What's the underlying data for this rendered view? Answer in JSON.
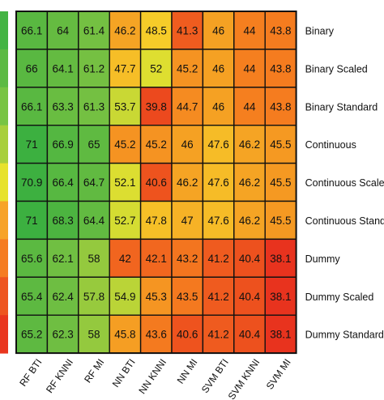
{
  "chart_data": {
    "type": "heatmap",
    "columns": [
      "RF BTI",
      "RF KNNI",
      "RF MI",
      "NN BTI",
      "NN KNNI",
      "NN MI",
      "SVM BTI",
      "SVM KNNI",
      "SVM MI"
    ],
    "rows": [
      "Binary",
      "Binary Scaled",
      "Binary Standard",
      "Continuous",
      "Continuous Scale",
      "Continuous Stand",
      "Dummy",
      "Dummy Scaled",
      "Dummy Standard"
    ],
    "values": [
      [
        66.1,
        64,
        61.4,
        46.2,
        48.5,
        41.3,
        46,
        44,
        43.8
      ],
      [
        66,
        64.1,
        61.2,
        47.7,
        52,
        45.2,
        46,
        44,
        43.8
      ],
      [
        66.1,
        63.3,
        61.3,
        53.7,
        39.8,
        44.7,
        46,
        44,
        43.8
      ],
      [
        71,
        66.9,
        65,
        45.2,
        45.2,
        46,
        47.6,
        46.2,
        45.5
      ],
      [
        70.9,
        66.4,
        64.7,
        52.1,
        40.6,
        46.2,
        47.6,
        46.2,
        45.5
      ],
      [
        71,
        68.3,
        64.4,
        52.7,
        47.8,
        47,
        47.6,
        46.2,
        45.5
      ],
      [
        65.6,
        62.1,
        58,
        42,
        42.1,
        43.2,
        41.2,
        40.4,
        38.1
      ],
      [
        65.4,
        62.4,
        57.8,
        54.9,
        45.3,
        43.5,
        41.2,
        40.4,
        38.1
      ],
      [
        65.2,
        62.3,
        58,
        45.8,
        43.6,
        40.6,
        41.2,
        40.4,
        38.1
      ]
    ],
    "value_labels": [
      [
        "66.1",
        "64",
        "61.4",
        "46.2",
        "48.5",
        "41.3",
        "46",
        "44",
        "43.8"
      ],
      [
        "66",
        "64.1",
        "61.2",
        "47.7",
        "52",
        "45.2",
        "46",
        "44",
        "43.8"
      ],
      [
        "66.1",
        "63.3",
        "61.3",
        "53.7",
        "39.8",
        "44.7",
        "46",
        "44",
        "43.8"
      ],
      [
        "71",
        "66.9",
        "65",
        "45.2",
        "45.2",
        "46",
        "47.6",
        "46.2",
        "45.5"
      ],
      [
        "70.9",
        "66.4",
        "64.7",
        "52.1",
        "40.6",
        "46.2",
        "47.6",
        "46.2",
        "45.5"
      ],
      [
        "71",
        "68.3",
        "64.4",
        "52.7",
        "47.8",
        "47",
        "47.6",
        "46.2",
        "45.5"
      ],
      [
        "65.6",
        "62.1",
        "58",
        "42",
        "42.1",
        "43.2",
        "41.2",
        "40.4",
        "38.1"
      ],
      [
        "65.4",
        "62.4",
        "57.8",
        "54.9",
        "45.3",
        "43.5",
        "41.2",
        "40.4",
        "38.1"
      ],
      [
        "65.2",
        "62.3",
        "58",
        "45.8",
        "43.6",
        "40.6",
        "41.2",
        "40.4",
        "38.1"
      ]
    ],
    "color_scale": {
      "stops": [
        {
          "value": 38,
          "color": "#e8321e"
        },
        {
          "value": 44,
          "color": "#f57f1f"
        },
        {
          "value": 50,
          "color": "#f6e52c"
        },
        {
          "value": 60,
          "color": "#7cc242"
        },
        {
          "value": 71,
          "color": "#3cb040"
        }
      ]
    },
    "colorbar_colors": [
      "#44b444",
      "#5cba44",
      "#78c444",
      "#a8cf3c",
      "#e7e22c",
      "#f7a328",
      "#f57c22",
      "#ee5520",
      "#e9361e"
    ],
    "grid_line_color": "#111111",
    "grid": true,
    "legend": "colorbar-left",
    "title": "",
    "xlabel": "",
    "ylabel": ""
  }
}
